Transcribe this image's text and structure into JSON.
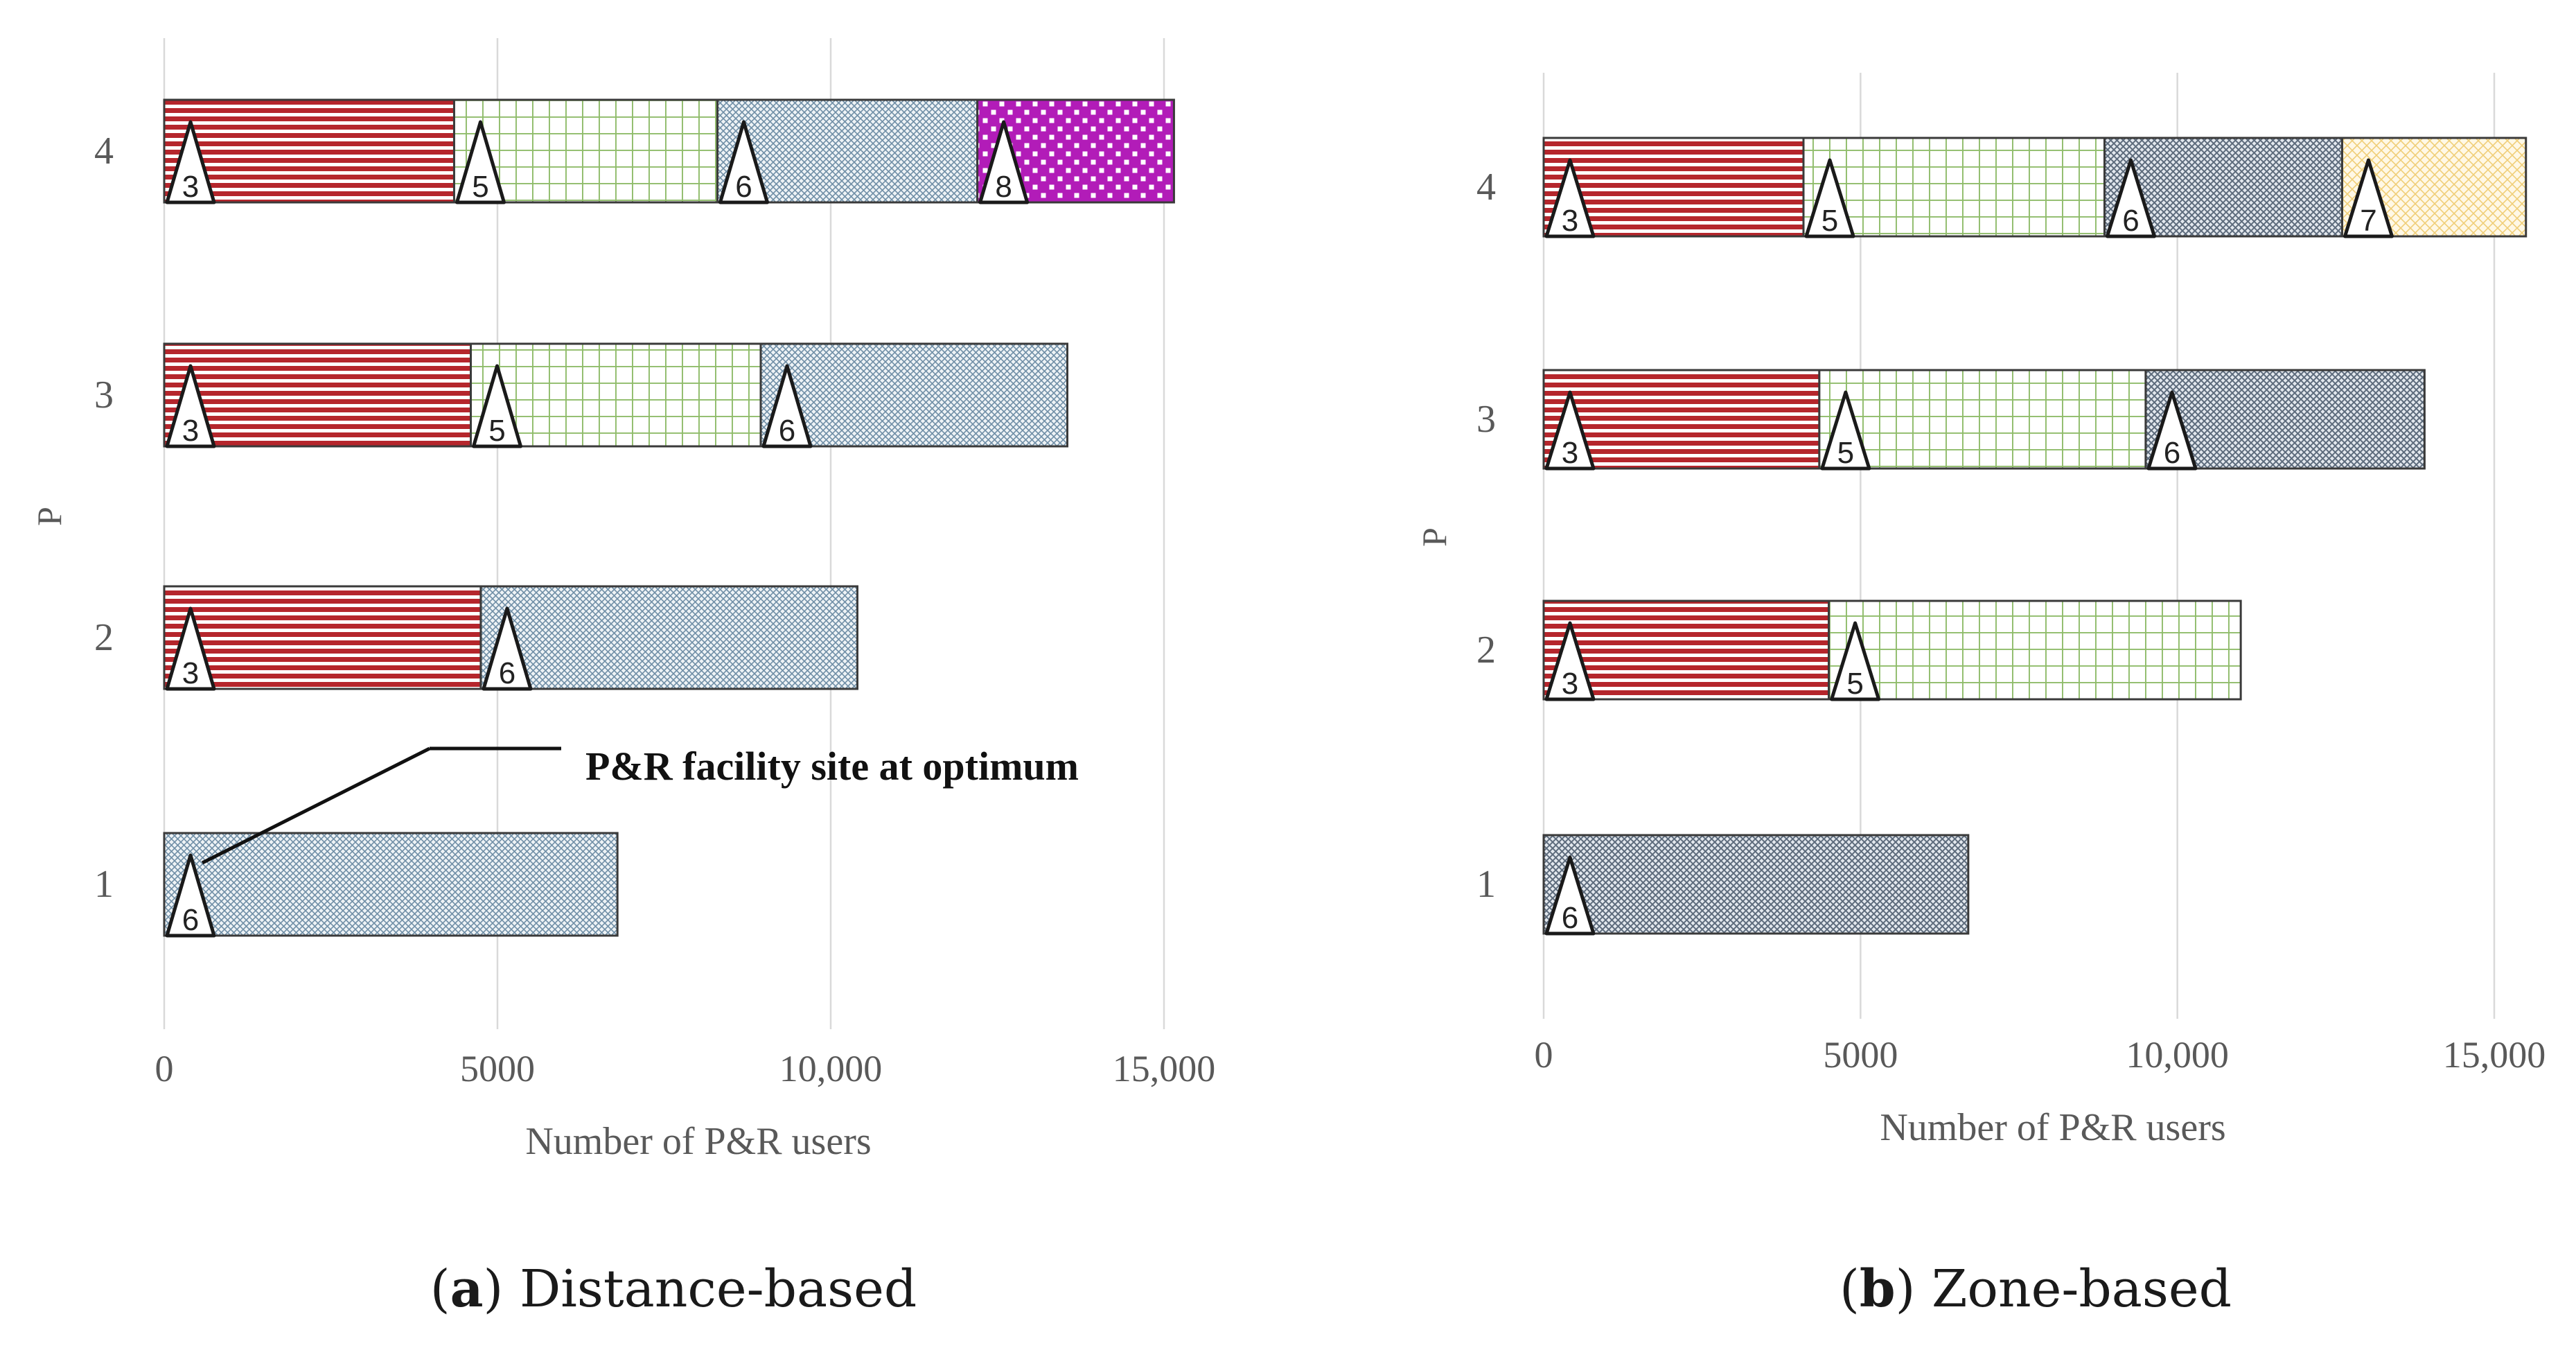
{
  "figure": {
    "annotation": "P&R facility site at optimum",
    "captions": [
      {
        "label": "a",
        "text": "Distance-based"
      },
      {
        "label": "b",
        "text": "Zone-based"
      }
    ]
  },
  "colors": {
    "red": "#b5262c",
    "green": "#8fbc6a",
    "blue": "#6f8ea6",
    "purple": "#b21cb8",
    "cream": "#f0ce78",
    "blue_zone": "#5d6b7c",
    "grid": "#d9d9d9",
    "text": "#595959"
  },
  "chart_data": [
    {
      "type": "bar",
      "orientation": "horizontal",
      "stacked": true,
      "title": "",
      "xlabel": "Number of P&R users",
      "ylabel": "P",
      "xlim": [
        0,
        15000
      ],
      "xticks": [
        0,
        5000,
        10000,
        15000
      ],
      "xtick_labels": [
        "0",
        "5000",
        "10,000",
        "15,000"
      ],
      "categories": [
        "1",
        "2",
        "3",
        "4"
      ],
      "grid": "vertical",
      "rows": [
        {
          "p": "1",
          "segments": [
            {
              "site": "6",
              "value": 6800,
              "pattern": "blue"
            }
          ]
        },
        {
          "p": "2",
          "segments": [
            {
              "site": "3",
              "value": 4750,
              "pattern": "red"
            },
            {
              "site": "6",
              "value": 5650,
              "pattern": "blue"
            }
          ]
        },
        {
          "p": "3",
          "segments": [
            {
              "site": "3",
              "value": 4600,
              "pattern": "red"
            },
            {
              "site": "5",
              "value": 4350,
              "pattern": "green"
            },
            {
              "site": "6",
              "value": 4600,
              "pattern": "blue"
            }
          ]
        },
        {
          "p": "4",
          "segments": [
            {
              "site": "3",
              "value": 4350,
              "pattern": "red"
            },
            {
              "site": "5",
              "value": 3950,
              "pattern": "green"
            },
            {
              "site": "6",
              "value": 3900,
              "pattern": "blue"
            },
            {
              "site": "8",
              "value": 2950,
              "pattern": "purple"
            }
          ]
        }
      ]
    },
    {
      "type": "bar",
      "orientation": "horizontal",
      "stacked": true,
      "title": "",
      "xlabel": "Number of P&R users",
      "ylabel": "P",
      "xlim": [
        0,
        15500
      ],
      "xticks": [
        0,
        5000,
        10000,
        15000
      ],
      "xtick_labels": [
        "0",
        "5000",
        "10,000",
        "15,000"
      ],
      "categories": [
        "1",
        "2",
        "3",
        "4"
      ],
      "grid": "vertical",
      "rows": [
        {
          "p": "1",
          "segments": [
            {
              "site": "6",
              "value": 6700,
              "pattern": "blue_zone"
            }
          ]
        },
        {
          "p": "2",
          "segments": [
            {
              "site": "3",
              "value": 4500,
              "pattern": "red"
            },
            {
              "site": "5",
              "value": 6500,
              "pattern": "green"
            }
          ]
        },
        {
          "p": "3",
          "segments": [
            {
              "site": "3",
              "value": 4350,
              "pattern": "red"
            },
            {
              "site": "5",
              "value": 5150,
              "pattern": "green"
            },
            {
              "site": "6",
              "value": 4400,
              "pattern": "blue_zone"
            }
          ]
        },
        {
          "p": "4",
          "segments": [
            {
              "site": "3",
              "value": 4100,
              "pattern": "red"
            },
            {
              "site": "5",
              "value": 4750,
              "pattern": "green"
            },
            {
              "site": "6",
              "value": 3750,
              "pattern": "blue_zone"
            },
            {
              "site": "7",
              "value": 2900,
              "pattern": "cream"
            }
          ]
        }
      ]
    }
  ]
}
